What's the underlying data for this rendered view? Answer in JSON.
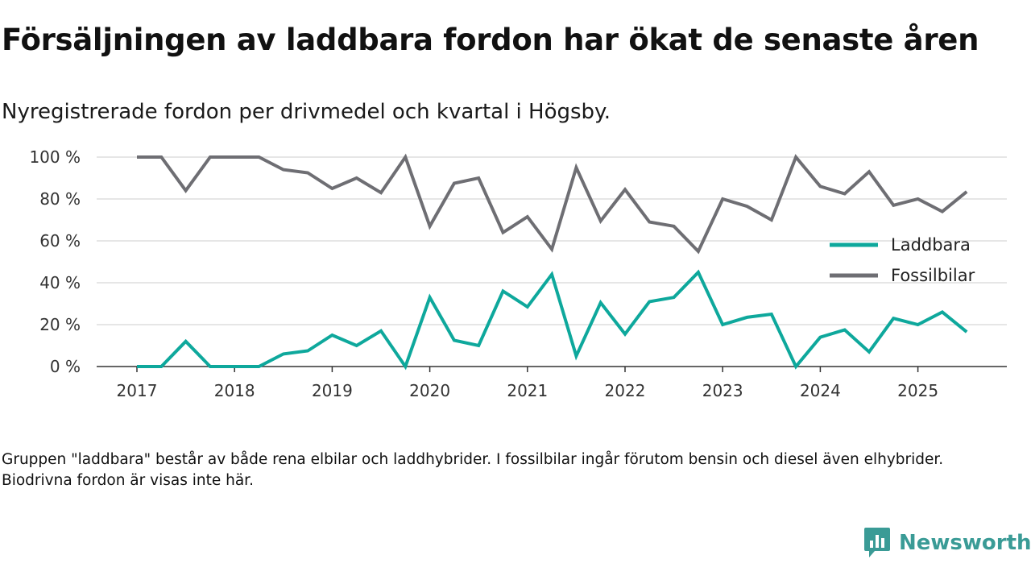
{
  "header": {
    "title": "Försäljningen av laddbara fordon har ökat de senaste åren",
    "subtitle": "Nyregistrerade fordon per drivmedel och kvartal i Högsby."
  },
  "footnote": "Gruppen \"laddbara\" består av både rena elbilar och laddhybrider. I fossilbilar ingår förutom bensin och diesel även elhybrider. Biodrivna fordon är visas inte här.",
  "brand": {
    "name": "Newsworthy",
    "icon": "newsworthy-logo-icon"
  },
  "colors": {
    "laddbara": "#0ea89c",
    "fossil": "#6e6e73",
    "grid": "#dddddd",
    "axis": "#333333"
  },
  "chart_data": {
    "type": "line",
    "title": "Nyregistrerade fordon per drivmedel och kvartal i Högsby.",
    "xlabel": "",
    "ylabel": "",
    "ylim": [
      0,
      100
    ],
    "y_ticks": [
      0,
      20,
      40,
      60,
      80,
      100
    ],
    "y_tick_labels": [
      "0 %",
      "20 %",
      "40 %",
      "60 %",
      "80 %",
      "100 %"
    ],
    "x_tick_labels": [
      "2017",
      "2018",
      "2019",
      "2020",
      "2021",
      "2022",
      "2023",
      "2024",
      "2025"
    ],
    "x_tick_index": [
      0,
      4,
      8,
      12,
      16,
      20,
      24,
      28,
      32
    ],
    "x": [
      "2017Q1",
      "2017Q2",
      "2017Q3",
      "2017Q4",
      "2018Q1",
      "2018Q2",
      "2018Q3",
      "2018Q4",
      "2019Q1",
      "2019Q2",
      "2019Q3",
      "2019Q4",
      "2020Q1",
      "2020Q2",
      "2020Q3",
      "2020Q4",
      "2021Q1",
      "2021Q2",
      "2021Q3",
      "2021Q4",
      "2022Q1",
      "2022Q2",
      "2022Q3",
      "2022Q4",
      "2023Q1",
      "2023Q2",
      "2023Q3",
      "2023Q4",
      "2024Q1",
      "2024Q2",
      "2024Q3",
      "2024Q4",
      "2025Q1",
      "2025Q2",
      "2025Q3"
    ],
    "series": [
      {
        "name": "Laddbara",
        "key": "laddbara",
        "values": [
          0,
          0,
          12,
          0,
          0,
          0,
          6,
          7.5,
          15,
          10,
          17,
          0,
          33,
          12.5,
          10,
          36,
          28.5,
          44,
          5,
          30.5,
          15.5,
          31,
          33,
          45,
          20,
          23.5,
          25,
          0,
          14,
          17.5,
          7,
          23,
          20,
          26,
          16.5
        ]
      },
      {
        "name": "Fossilbilar",
        "key": "fossil",
        "values": [
          100,
          100,
          84,
          100,
          100,
          100,
          94,
          92.5,
          85,
          90,
          83,
          100,
          67,
          87.5,
          90,
          64,
          71.5,
          56,
          95,
          69.5,
          84.5,
          69,
          67,
          55,
          80,
          76.5,
          70,
          100,
          86,
          82.5,
          93,
          77,
          80,
          74,
          83.5
        ]
      }
    ],
    "legend": {
      "position": "right",
      "entries": [
        "Laddbara",
        "Fossilbilar"
      ]
    }
  }
}
